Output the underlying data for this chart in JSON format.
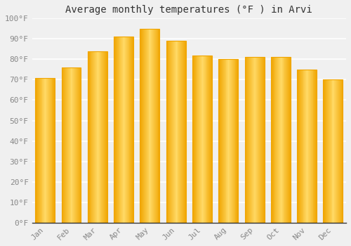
{
  "title": "Average monthly temperatures (°F ) in Arvi",
  "months": [
    "Jan",
    "Feb",
    "Mar",
    "Apr",
    "May",
    "Jun",
    "Jul",
    "Aug",
    "Sep",
    "Oct",
    "Nov",
    "Dec"
  ],
  "values": [
    71,
    76,
    84,
    91,
    95,
    89,
    82,
    80,
    81,
    81,
    75,
    70
  ],
  "bar_color_center": "#FFD966",
  "bar_color_edge": "#F0A500",
  "ylim": [
    0,
    100
  ],
  "yticks": [
    0,
    10,
    20,
    30,
    40,
    50,
    60,
    70,
    80,
    90,
    100
  ],
  "ytick_labels": [
    "0°F",
    "10°F",
    "20°F",
    "30°F",
    "40°F",
    "50°F",
    "60°F",
    "70°F",
    "80°F",
    "90°F",
    "100°F"
  ],
  "background_color": "#f0f0f0",
  "grid_color": "#ffffff",
  "title_fontsize": 10,
  "tick_fontsize": 8,
  "tick_color": "#888888",
  "bar_width": 0.75
}
